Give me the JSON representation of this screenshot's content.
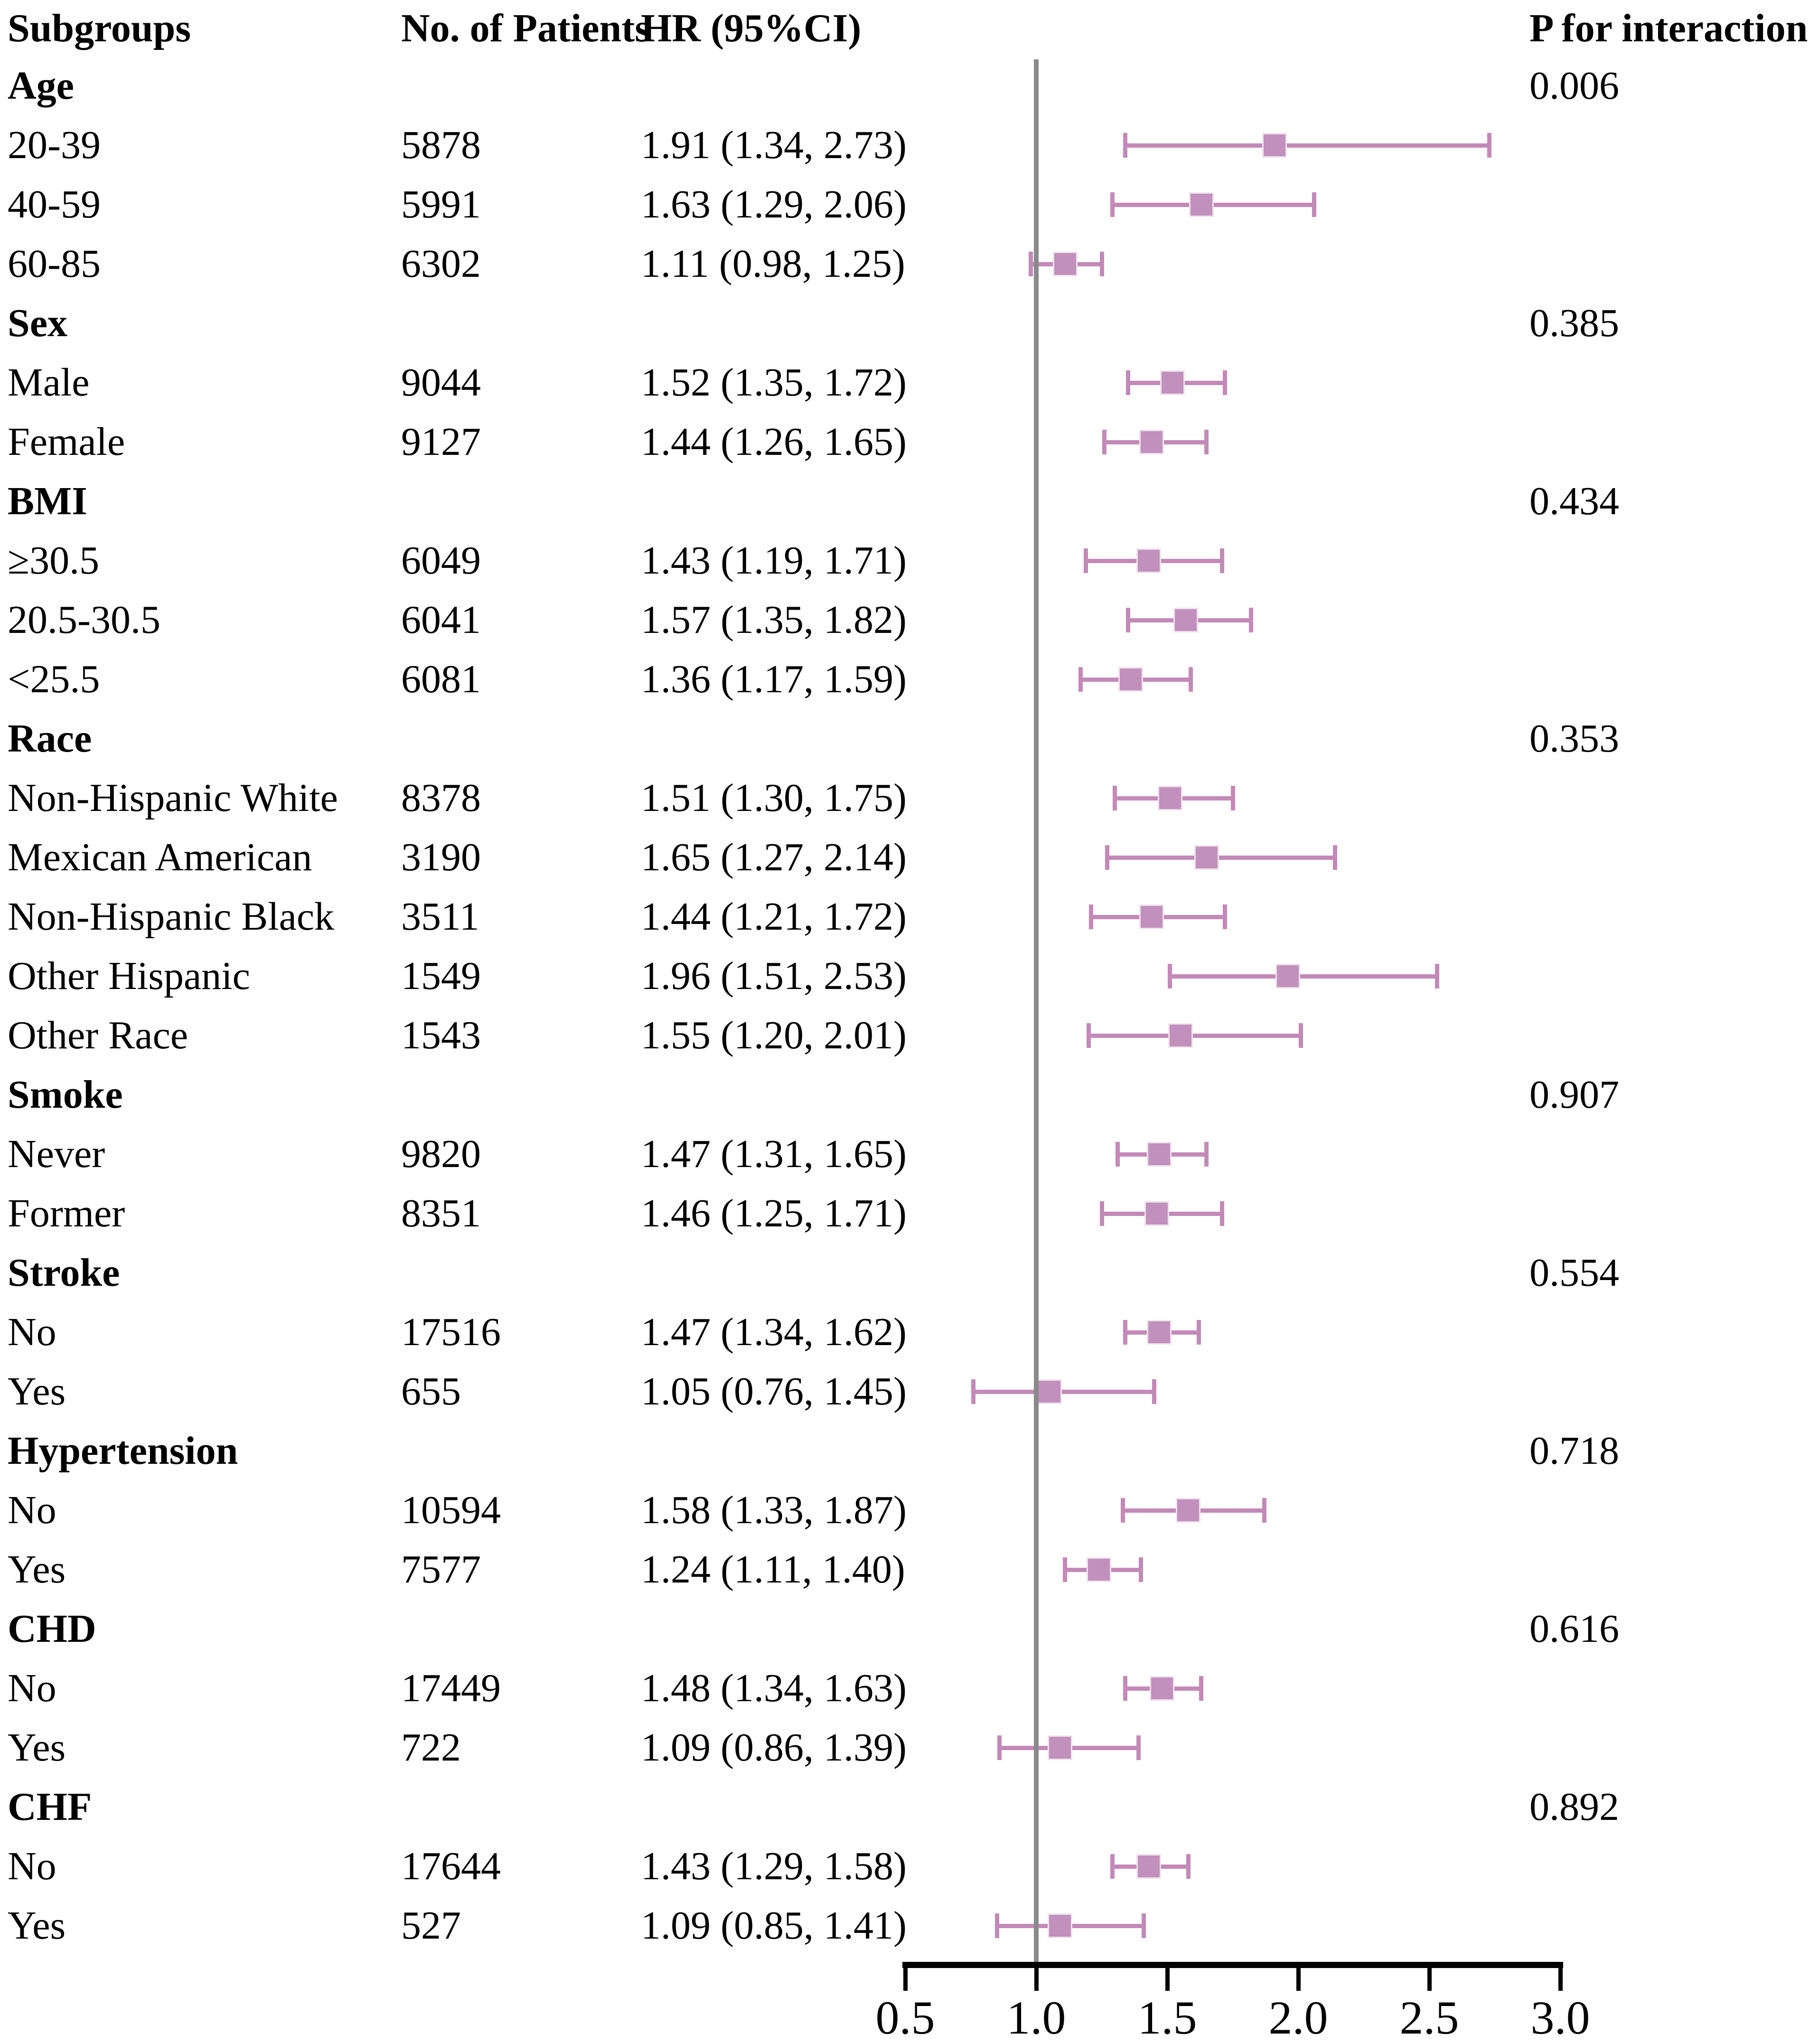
{
  "header": {
    "subgroups": "Subgroups",
    "patients": "No. of Patients",
    "hr": "HR (95%CI)",
    "p_interaction": "P for interaction"
  },
  "colors": {
    "marker_fill": "#c290bc",
    "marker_border": "#f0e3ee",
    "error_line": "#c389b8",
    "refline": "#8a8a8a",
    "axis": "#000000",
    "text": "#000000"
  },
  "chart_data": {
    "type": "forest",
    "title": "",
    "xlabel": "",
    "ylabel": "",
    "xlim": [
      0.5,
      3.0
    ],
    "reference_value": 1.0,
    "axis_ticks": [
      {
        "value": 0.5,
        "label": "0.5"
      },
      {
        "value": 1.0,
        "label": "1.0"
      },
      {
        "value": 1.5,
        "label": "1.5"
      },
      {
        "value": 2.0,
        "label": "2.0"
      },
      {
        "value": 2.5,
        "label": "2.5"
      },
      {
        "value": 3.0,
        "label": "3.0"
      }
    ],
    "groups": [
      {
        "label": "Age",
        "p_interaction": "0.006",
        "rows": [
          {
            "label": "20-39",
            "n": "5878",
            "hr_text": "1.91 (1.34, 2.73)",
            "hr": 1.91,
            "lo": 1.34,
            "hi": 2.73
          },
          {
            "label": "40-59",
            "n": "5991",
            "hr_text": "1.63 (1.29, 2.06)",
            "hr": 1.63,
            "lo": 1.29,
            "hi": 2.06
          },
          {
            "label": "60-85",
            "n": "6302",
            "hr_text": "1.11 (0.98, 1.25)",
            "hr": 1.11,
            "lo": 0.98,
            "hi": 1.25
          }
        ]
      },
      {
        "label": "Sex",
        "p_interaction": "0.385",
        "rows": [
          {
            "label": "Male",
            "n": "9044",
            "hr_text": "1.52 (1.35, 1.72)",
            "hr": 1.52,
            "lo": 1.35,
            "hi": 1.72
          },
          {
            "label": "Female",
            "n": "9127",
            "hr_text": "1.44 (1.26, 1.65)",
            "hr": 1.44,
            "lo": 1.26,
            "hi": 1.65
          }
        ]
      },
      {
        "label": "BMI",
        "p_interaction": "0.434",
        "rows": [
          {
            "label": "≥30.5",
            "n": "6049",
            "hr_text": "1.43 (1.19, 1.71)",
            "hr": 1.43,
            "lo": 1.19,
            "hi": 1.71
          },
          {
            "label": "20.5-30.5",
            "n": "6041",
            "hr_text": "1.57 (1.35, 1.82)",
            "hr": 1.57,
            "lo": 1.35,
            "hi": 1.82
          },
          {
            "label": "<25.5",
            "n": "6081",
            "hr_text": "1.36 (1.17, 1.59)",
            "hr": 1.36,
            "lo": 1.17,
            "hi": 1.59
          }
        ]
      },
      {
        "label": "Race",
        "p_interaction": "0.353",
        "rows": [
          {
            "label": "Non-Hispanic White",
            "n": "8378",
            "hr_text": "1.51 (1.30, 1.75)",
            "hr": 1.51,
            "lo": 1.3,
            "hi": 1.75
          },
          {
            "label": "Mexican American",
            "n": "3190",
            "hr_text": "1.65 (1.27, 2.14)",
            "hr": 1.65,
            "lo": 1.27,
            "hi": 2.14
          },
          {
            "label": "Non-Hispanic Black",
            "n": "3511",
            "hr_text": "1.44 (1.21, 1.72)",
            "hr": 1.44,
            "lo": 1.21,
            "hi": 1.72
          },
          {
            "label": "Other Hispanic",
            "n": "1549",
            "hr_text": "1.96 (1.51, 2.53)",
            "hr": 1.96,
            "lo": 1.51,
            "hi": 2.53
          },
          {
            "label": "Other Race",
            "n": "1543",
            "hr_text": "1.55 (1.20, 2.01)",
            "hr": 1.55,
            "lo": 1.2,
            "hi": 2.01
          }
        ]
      },
      {
        "label": "Smoke",
        "p_interaction": "0.907",
        "rows": [
          {
            "label": "Never",
            "n": "9820",
            "hr_text": "1.47 (1.31, 1.65)",
            "hr": 1.47,
            "lo": 1.31,
            "hi": 1.65
          },
          {
            "label": "Former",
            "n": "8351",
            "hr_text": "1.46 (1.25, 1.71)",
            "hr": 1.46,
            "lo": 1.25,
            "hi": 1.71
          }
        ]
      },
      {
        "label": "Stroke",
        "p_interaction": "0.554",
        "rows": [
          {
            "label": "No",
            "n": "17516",
            "hr_text": "1.47 (1.34, 1.62)",
            "hr": 1.47,
            "lo": 1.34,
            "hi": 1.62
          },
          {
            "label": "Yes",
            "n": "655",
            "hr_text": "1.05 (0.76, 1.45)",
            "hr": 1.05,
            "lo": 0.76,
            "hi": 1.45
          }
        ]
      },
      {
        "label": "Hypertension",
        "p_interaction": "0.718",
        "rows": [
          {
            "label": "No",
            "n": "10594",
            "hr_text": "1.58 (1.33, 1.87)",
            "hr": 1.58,
            "lo": 1.33,
            "hi": 1.87
          },
          {
            "label": "Yes",
            "n": "7577",
            "hr_text": "1.24 (1.11, 1.40)",
            "hr": 1.24,
            "lo": 1.11,
            "hi": 1.4
          }
        ]
      },
      {
        "label": "CHD",
        "p_interaction": "0.616",
        "rows": [
          {
            "label": "No",
            "n": "17449",
            "hr_text": "1.48 (1.34, 1.63)",
            "hr": 1.48,
            "lo": 1.34,
            "hi": 1.63
          },
          {
            "label": "Yes",
            "n": "722",
            "hr_text": "1.09 (0.86, 1.39)",
            "hr": 1.09,
            "lo": 0.86,
            "hi": 1.39
          }
        ]
      },
      {
        "label": "CHF",
        "p_interaction": "0.892",
        "rows": [
          {
            "label": "No",
            "n": "17644",
            "hr_text": "1.43 (1.29, 1.58)",
            "hr": 1.43,
            "lo": 1.29,
            "hi": 1.58
          },
          {
            "label": "Yes",
            "n": "527",
            "hr_text": "1.09 (0.85, 1.41)",
            "hr": 1.09,
            "lo": 0.85,
            "hi": 1.41
          }
        ]
      }
    ]
  }
}
